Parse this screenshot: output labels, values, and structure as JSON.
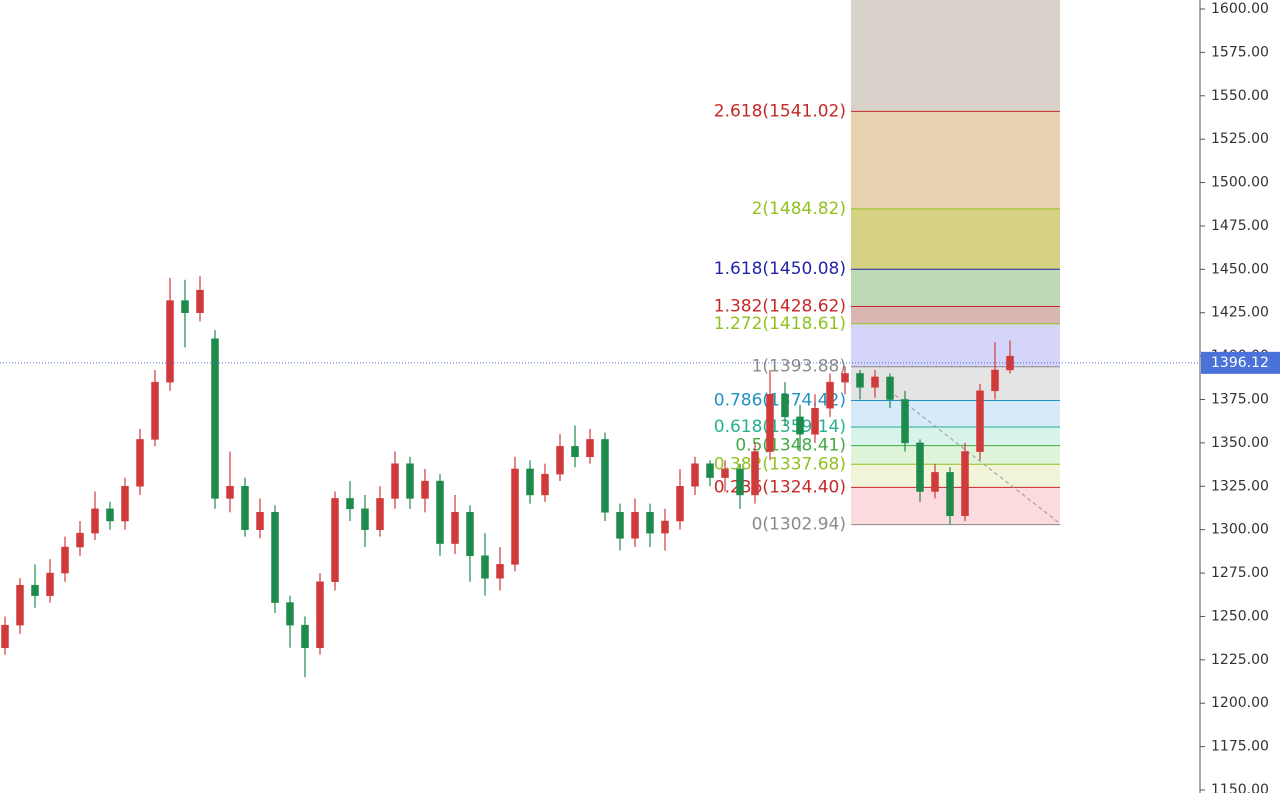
{
  "chart_data": {
    "type": "candlestick",
    "up_color": "#d03a3a",
    "down_color": "#1e8a4c",
    "ylim": [
      1150,
      1600
    ],
    "yticks": [
      {
        "value": 1600,
        "label": "1600.00"
      },
      {
        "value": 1575,
        "label": "1575.00"
      },
      {
        "value": 1550,
        "label": "1550.00"
      },
      {
        "value": 1525,
        "label": "1525.00"
      },
      {
        "value": 1500,
        "label": "1500.00"
      },
      {
        "value": 1475,
        "label": "1475.00"
      },
      {
        "value": 1450,
        "label": "1450.00"
      },
      {
        "value": 1425,
        "label": "1425.00"
      },
      {
        "value": 1400,
        "label": "1400.00"
      },
      {
        "value": 1375,
        "label": "1375.00"
      },
      {
        "value": 1350,
        "label": "1350.00"
      },
      {
        "value": 1325,
        "label": "1325.00"
      },
      {
        "value": 1300,
        "label": "1300.00"
      },
      {
        "value": 1275,
        "label": "1275.00"
      },
      {
        "value": 1250,
        "label": "1250.00"
      },
      {
        "value": 1225,
        "label": "1225.00"
      },
      {
        "value": 1200,
        "label": "1200.00"
      },
      {
        "value": 1175,
        "label": "1175.00"
      },
      {
        "value": 1150,
        "label": "1150.00"
      }
    ],
    "current_price": 1396.12,
    "current_price_color": "#4a72d8",
    "candles": {
      "open": [
        1232,
        1245,
        1268,
        1262,
        1275,
        1290,
        1298,
        1312,
        1305,
        1325,
        1352,
        1385,
        1432,
        1425,
        1410,
        1318,
        1325,
        1300,
        1310,
        1258,
        1245,
        1232,
        1270,
        1318,
        1312,
        1300,
        1318,
        1338,
        1318,
        1328,
        1292,
        1310,
        1285,
        1272,
        1280,
        1335,
        1320,
        1332,
        1348,
        1342,
        1352,
        1310,
        1295,
        1310,
        1298,
        1305,
        1325,
        1338,
        1330,
        1335,
        1320,
        1345,
        1378,
        1365,
        1355,
        1370,
        1385,
        1390,
        1382,
        1388,
        1375,
        1350,
        1322,
        1333,
        1308,
        1345,
        1380,
        1392
      ],
      "high": [
        1250,
        1272,
        1280,
        1283,
        1296,
        1305,
        1322,
        1316,
        1330,
        1358,
        1392,
        1445,
        1444,
        1446,
        1415,
        1345,
        1330,
        1318,
        1314,
        1262,
        1250,
        1275,
        1322,
        1328,
        1320,
        1325,
        1345,
        1342,
        1335,
        1332,
        1320,
        1314,
        1298,
        1290,
        1342,
        1340,
        1338,
        1355,
        1360,
        1358,
        1356,
        1315,
        1318,
        1315,
        1312,
        1335,
        1342,
        1340,
        1340,
        1338,
        1350,
        1392,
        1385,
        1372,
        1378,
        1390,
        1394,
        1392,
        1392,
        1390,
        1380,
        1352,
        1338,
        1336,
        1350,
        1384,
        1408,
        1409
      ],
      "low": [
        1228,
        1240,
        1255,
        1258,
        1270,
        1285,
        1294,
        1300,
        1300,
        1320,
        1348,
        1380,
        1405,
        1420,
        1312,
        1310,
        1296,
        1295,
        1252,
        1232,
        1215,
        1228,
        1265,
        1305,
        1290,
        1296,
        1312,
        1312,
        1310,
        1285,
        1286,
        1270,
        1262,
        1265,
        1276,
        1315,
        1316,
        1328,
        1336,
        1338,
        1305,
        1288,
        1290,
        1290,
        1288,
        1300,
        1320,
        1325,
        1322,
        1312,
        1315,
        1340,
        1360,
        1345,
        1350,
        1365,
        1378,
        1375,
        1376,
        1370,
        1345,
        1316,
        1318,
        1302.94,
        1305,
        1340,
        1375,
        1390
      ],
      "close": [
        1245,
        1268,
        1262,
        1275,
        1290,
        1298,
        1312,
        1305,
        1325,
        1352,
        1385,
        1432,
        1425,
        1438,
        1318,
        1325,
        1300,
        1310,
        1258,
        1245,
        1232,
        1270,
        1318,
        1312,
        1300,
        1318,
        1338,
        1318,
        1328,
        1292,
        1310,
        1285,
        1272,
        1280,
        1335,
        1320,
        1332,
        1348,
        1342,
        1352,
        1310,
        1295,
        1310,
        1298,
        1305,
        1325,
        1338,
        1330,
        1335,
        1320,
        1345,
        1378,
        1365,
        1355,
        1370,
        1385,
        1390,
        1382,
        1388,
        1375,
        1350,
        1322,
        1333,
        1308,
        1345,
        1380,
        1392,
        1400
      ]
    },
    "fibonacci": [
      {
        "price": 1302.94,
        "label": "0(1302.94)",
        "color": "#8a8a8a",
        "fill": "rgba(235,90,100,0.22)"
      },
      {
        "price": 1324.4,
        "label": "0.236(1324.40)",
        "color": "#c62828",
        "fill": "rgba(210,215,120,0.28)"
      },
      {
        "price": 1337.68,
        "label": "0.382(1337.68)",
        "color": "#8fc31f",
        "fill": "rgba(140,215,120,0.28)"
      },
      {
        "price": 1348.41,
        "label": "0.5(1348.41)",
        "color": "#43a843",
        "fill": "rgba(100,210,170,0.25)"
      },
      {
        "price": 1359.14,
        "label": "0.618(1359.14)",
        "color": "#26b08e",
        "fill": "rgba(120,185,235,0.3)"
      },
      {
        "price": 1374.42,
        "label": "0.786(1374.42)",
        "color": "#2193c4",
        "fill": "rgba(195,195,195,0.45)"
      },
      {
        "price": 1393.88,
        "label": "1(1393.88)",
        "color": "#8a8a8a",
        "fill": "rgba(150,150,240,0.4)"
      },
      {
        "price": 1418.61,
        "label": "1.272(1418.61)",
        "color": "#8fc31f",
        "fill": "rgba(180,110,100,0.5)"
      },
      {
        "price": 1428.62,
        "label": "1.382(1428.62)",
        "color": "#c62828",
        "fill": "rgba(110,170,90,0.45)"
      },
      {
        "price": 1450.08,
        "label": "1.618(1450.08)",
        "color": "#2525a8",
        "fill": "rgba(185,180,50,0.6)"
      },
      {
        "price": 1484.82,
        "label": "2(1484.82)",
        "color": "#8fc31f",
        "fill": "rgba(210,165,95,0.5)"
      },
      {
        "price": 1541.02,
        "label": "2.618(1541.02)",
        "color": "#c62828",
        "fill": "rgba(180,165,150,0.5)"
      }
    ]
  }
}
